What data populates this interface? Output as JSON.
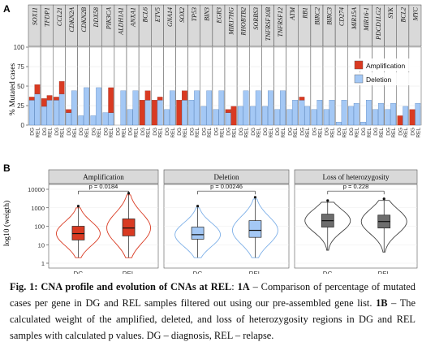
{
  "panel_a": {
    "label": "A",
    "ylabel": "% Mutated cases",
    "legend": [
      {
        "name": "Amplification",
        "color": "#d93a22"
      },
      {
        "name": "Deletion",
        "color": "#a4c8f5"
      }
    ]
  },
  "panel_b": {
    "label": "B",
    "ylabel": "log10 (weigth)",
    "y_ticks": [
      "1",
      "10",
      "100",
      "1000",
      "10000"
    ],
    "x_categories": [
      "DG",
      "REL"
    ]
  },
  "caption": {
    "fig_label": "Fig. 1: CNA profile and evolution of CNAs at REL",
    "part_1a_label": "1A",
    "part_1a_text": " – Comparison of percentage of mutated cases per gene in DG and REL samples filtered out using our pre-assembled gene list. ",
    "part_1b_label": "1B",
    "part_1b_text": " – The calculated weight of the amplified, deleted, and loss of heterozygosity regions in DG and REL samples with calculated p values. DG – diagnosis, REL – relapse."
  },
  "chart_data": [
    {
      "type": "bar",
      "ylabel": "% Mutated cases",
      "ylim": [
        0,
        100
      ],
      "y_ticks": [
        0,
        25,
        50,
        75,
        100
      ],
      "grid": true,
      "legend_position": "right",
      "genes": [
        "SOX11",
        "TFDP1",
        "CCL21",
        "CDKN2A",
        "CDKN2B",
        "DDX58",
        "PIK3CA",
        "ALDH1A1",
        "ANXA1",
        "BCL6",
        "ETV5",
        "GNA14",
        "SOX2",
        "TP53",
        "BIN3",
        "EGR3",
        "MIR17HG",
        "RHOBTB2",
        "SORBS3",
        "TNFRSF10B",
        "TNFRSF12",
        "ATM",
        "RB1",
        "BIRC2",
        "BIRC3",
        "CD274",
        "MIR15A",
        "MIR16-1",
        "PDCD1LG2",
        "SYK",
        "BCL2",
        "MYC"
      ],
      "samples": [
        "DG",
        "REL"
      ],
      "series": [
        {
          "name": "Amplification",
          "color": "#d93a22",
          "dg": [
            4,
            10,
            4,
            4,
            0,
            0,
            0,
            0,
            0,
            32,
            32,
            0,
            32,
            0,
            0,
            0,
            4,
            0,
            0,
            0,
            0,
            0,
            4,
            0,
            0,
            0,
            0,
            0,
            0,
            0,
            12,
            20
          ],
          "rel": [
            12,
            6,
            16,
            0,
            0,
            0,
            32,
            0,
            0,
            12,
            4,
            0,
            12,
            0,
            0,
            0,
            24,
            0,
            0,
            0,
            0,
            0,
            0,
            0,
            0,
            0,
            0,
            0,
            0,
            0,
            0,
            0
          ]
        },
        {
          "name": "Deletion",
          "color": "#a4c8f5",
          "dg": [
            32,
            24,
            32,
            16,
            12,
            12,
            16,
            0,
            20,
            0,
            0,
            20,
            0,
            32,
            24,
            20,
            16,
            24,
            24,
            24,
            20,
            20,
            32,
            20,
            20,
            4,
            24,
            4,
            20,
            20,
            0,
            0
          ],
          "rel": [
            40,
            32,
            40,
            44,
            48,
            48,
            16,
            44,
            44,
            32,
            32,
            44,
            32,
            44,
            44,
            44,
            0,
            44,
            44,
            44,
            44,
            32,
            24,
            32,
            32,
            32,
            28,
            32,
            28,
            28,
            24,
            28
          ]
        }
      ]
    },
    {
      "type": "violin",
      "ylabel": "log10 (weigth)",
      "y_scale": "log10",
      "ylim": [
        1,
        10000
      ],
      "panels": [
        {
          "title": "Amplification",
          "p_value": "p = 0.0184",
          "color": "#d93a22",
          "fill": "#ffffff",
          "groups": [
            {
              "x": "DG",
              "q1": 18,
              "median": 40,
              "q3": 100,
              "whisker_low": 2,
              "whisker_high": 1000
            },
            {
              "x": "REL",
              "q1": 30,
              "median": 80,
              "q3": 250,
              "whisker_low": 2,
              "whisker_high": 5000
            }
          ]
        },
        {
          "title": "Deletion",
          "p_value": "p = 0.00246",
          "color": "#7eb0e8",
          "fill": "#ffffff",
          "groups": [
            {
              "x": "DG",
              "q1": 20,
              "median": 35,
              "q3": 90,
              "whisker_low": 2,
              "whisker_high": 1000
            },
            {
              "x": "REL",
              "q1": 25,
              "median": 60,
              "q3": 200,
              "whisker_low": 2,
              "whisker_high": 3000
            }
          ]
        },
        {
          "title": "Loss of heterozygosity",
          "p_value": "p = 0.228",
          "color": "#444444",
          "fill": "#ffffff",
          "groups": [
            {
              "x": "DG",
              "q1": 90,
              "median": 200,
              "q3": 450,
              "whisker_low": 5,
              "whisker_high": 2000
            },
            {
              "x": "REL",
              "q1": 80,
              "median": 180,
              "q3": 400,
              "whisker_low": 4,
              "whisker_high": 2500
            }
          ]
        }
      ]
    }
  ]
}
